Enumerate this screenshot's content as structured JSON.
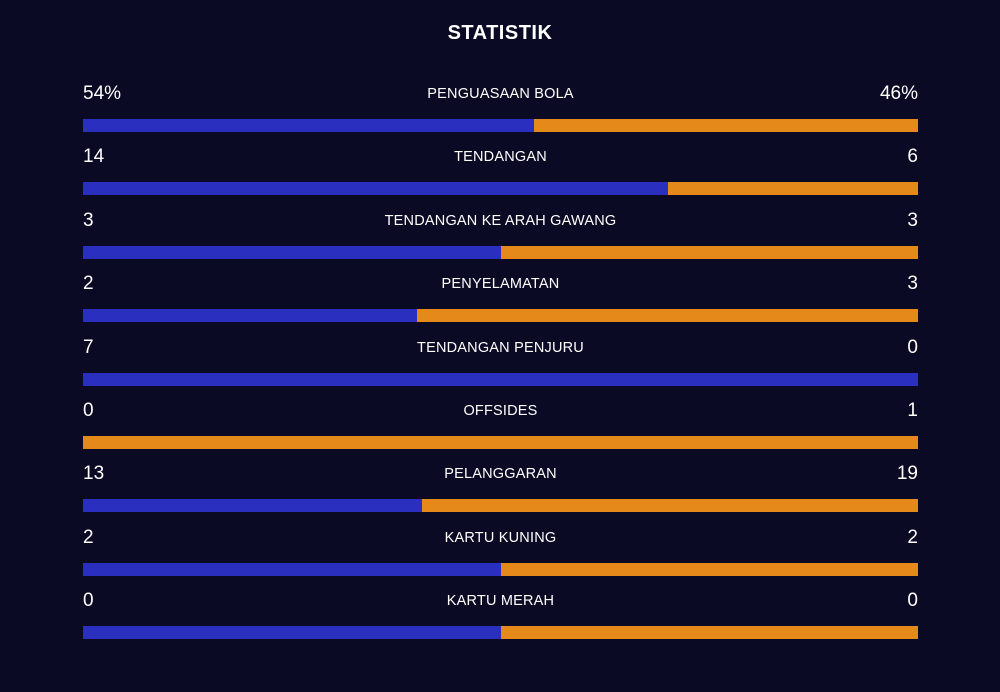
{
  "title": "STATISTIK",
  "colors": {
    "background": "#0a0a24",
    "home": "#2b2fbf",
    "away": "#e58a1a"
  },
  "stats": [
    {
      "label": "PENGUASAAN BOLA",
      "left": "54%",
      "right": "46%",
      "home": 54,
      "away": 46
    },
    {
      "label": "TENDANGAN",
      "left": "14",
      "right": "6",
      "home": 14,
      "away": 6
    },
    {
      "label": "TENDANGAN KE ARAH GAWANG",
      "left": "3",
      "right": "3",
      "home": 3,
      "away": 3
    },
    {
      "label": "PENYELAMATAN",
      "left": "2",
      "right": "3",
      "home": 2,
      "away": 3
    },
    {
      "label": "TENDANGAN PENJURU",
      "left": "7",
      "right": "0",
      "home": 7,
      "away": 0
    },
    {
      "label": "OFFSIDES",
      "left": "0",
      "right": "1",
      "home": 0,
      "away": 1
    },
    {
      "label": "PELANGGARAN",
      "left": "13",
      "right": "19",
      "home": 13,
      "away": 19
    },
    {
      "label": "KARTU KUNING",
      "left": "2",
      "right": "2",
      "home": 2,
      "away": 2
    },
    {
      "label": "KARTU MERAH",
      "left": "0",
      "right": "0",
      "home": 0,
      "away": 0
    }
  ]
}
